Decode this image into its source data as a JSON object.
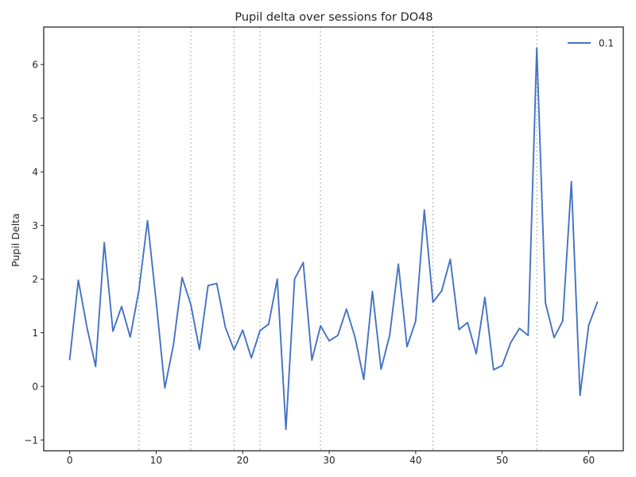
{
  "chart_data": {
    "type": "line",
    "title": "Pupil delta over sessions for DO48",
    "xlabel": "",
    "ylabel": "Pupil Delta",
    "xlim": [
      -3,
      64
    ],
    "ylim": [
      -1.2,
      6.7
    ],
    "x_ticks": [
      0,
      10,
      20,
      30,
      40,
      50,
      60
    ],
    "y_ticks": [
      -1,
      0,
      1,
      2,
      3,
      4,
      5,
      6
    ],
    "y_tick_labels": [
      "−1",
      "0",
      "1",
      "2",
      "3",
      "4",
      "5",
      "6"
    ],
    "grid": false,
    "legend_position": "top-right",
    "vlines": [
      8,
      14,
      19,
      22,
      29,
      42,
      54
    ],
    "vline_color": "#bbbbbb",
    "series": [
      {
        "name": "0.1",
        "color": "#4472c4",
        "x": [
          0,
          1,
          2,
          3,
          4,
          5,
          6,
          7,
          8,
          9,
          10,
          11,
          12,
          13,
          14,
          15,
          16,
          17,
          18,
          19,
          20,
          21,
          22,
          23,
          24,
          25,
          26,
          27,
          28,
          29,
          30,
          31,
          32,
          33,
          34,
          35,
          36,
          37,
          38,
          39,
          40,
          41,
          42,
          43,
          44,
          45,
          46,
          47,
          48,
          49,
          50,
          51,
          52,
          53,
          54,
          55,
          56,
          57,
          58,
          59,
          60,
          61
        ],
        "y": [
          0.5,
          1.98,
          1.1,
          0.37,
          2.68,
          1.03,
          1.49,
          0.92,
          1.79,
          3.09,
          1.58,
          -0.03,
          0.78,
          2.03,
          1.53,
          0.69,
          1.88,
          1.92,
          1.1,
          0.68,
          1.05,
          0.53,
          1.04,
          1.16,
          2.0,
          -0.8,
          2.0,
          2.31,
          0.49,
          1.13,
          0.85,
          0.95,
          1.44,
          0.91,
          0.13,
          1.77,
          0.32,
          0.96,
          2.28,
          0.74,
          1.22,
          3.29,
          1.57,
          1.78,
          2.37,
          1.06,
          1.19,
          0.61,
          1.66,
          0.31,
          0.39,
          0.82,
          1.08,
          0.95,
          6.31,
          1.56,
          0.91,
          1.22,
          3.82,
          -0.17,
          1.14,
          1.57
        ]
      }
    ]
  }
}
